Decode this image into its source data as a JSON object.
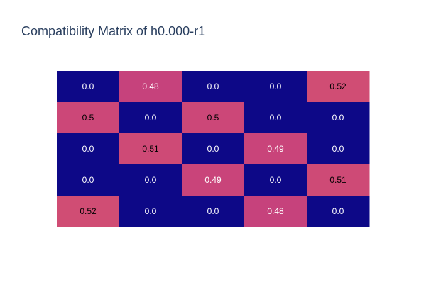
{
  "chart_data": {
    "type": "heatmap",
    "title": "Compatibility Matrix of h0.000-r1",
    "rows": 5,
    "cols": 5,
    "z": [
      [
        0.0,
        0.48,
        0.0,
        0.0,
        0.52
      ],
      [
        0.5,
        0.0,
        0.5,
        0.0,
        0.0
      ],
      [
        0.0,
        0.51,
        0.0,
        0.49,
        0.0
      ],
      [
        0.0,
        0.0,
        0.49,
        0.0,
        0.51
      ],
      [
        0.52,
        0.0,
        0.0,
        0.48,
        0.0
      ]
    ],
    "text": [
      [
        "0.0",
        "0.48",
        "0.0",
        "0.0",
        "0.52"
      ],
      [
        "0.5",
        "0.0",
        "0.5",
        "0.0",
        "0.0"
      ],
      [
        "0.0",
        "0.51",
        "0.0",
        "0.49",
        "0.0"
      ],
      [
        "0.0",
        "0.0",
        "0.49",
        "0.0",
        "0.51"
      ],
      [
        "0.52",
        "0.0",
        "0.0",
        "0.48",
        "0.0"
      ]
    ],
    "zrange": [
      0,
      1
    ],
    "colorscale": "plasma",
    "colors": {
      "low": "#0d0887",
      "mid_low": "#cc4778",
      "mid_high": "#d8576b",
      "text_dark_bg": "#ffffff",
      "text_light_bg": "#000000"
    },
    "grid": false,
    "legend": "none"
  }
}
